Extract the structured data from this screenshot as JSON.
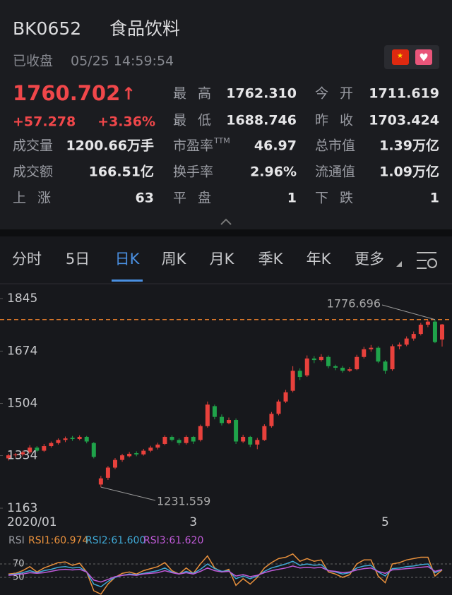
{
  "header": {
    "code": "BK0652",
    "name": "食品饮料",
    "status": "已收盘",
    "time": "05/25 14:59:54"
  },
  "quote": {
    "price": "1760.702",
    "change": "+57.278",
    "change_pct": "+3.36%",
    "left": [
      {
        "label": "成交量",
        "value": "1200.66万手"
      },
      {
        "label": "成交额",
        "value": "166.51亿"
      },
      {
        "label": "上 涨",
        "value": "63"
      }
    ],
    "middle": [
      {
        "label": "最 高",
        "value": "1762.310",
        "color": "#f0474a"
      },
      {
        "label": "最 低",
        "value": "1688.746",
        "color": "#25b35a"
      },
      {
        "label": "市盈率",
        "label_sup": "TTM",
        "value": "46.97"
      },
      {
        "label": "换手率",
        "value": "2.96%"
      },
      {
        "label": "平 盘",
        "value": "1"
      }
    ],
    "right": [
      {
        "label": "今 开",
        "value": "1711.619",
        "color": "#f0474a"
      },
      {
        "label": "昨 收",
        "value": "1703.424",
        "color": "#a9b4c8"
      },
      {
        "label": "总市值",
        "value": "1.39万亿"
      },
      {
        "label": "流通值",
        "value": "1.09万亿"
      },
      {
        "label": "下 跌",
        "value": "1"
      }
    ]
  },
  "tabs": {
    "items": [
      "分时",
      "5日",
      "日K",
      "周K",
      "月K",
      "季K",
      "年K",
      "更多"
    ],
    "selected": 2
  },
  "chart_data": {
    "type": "candlestick",
    "categories": [
      "2020/01",
      null,
      null,
      null,
      null,
      null,
      null,
      null,
      null,
      null,
      null,
      null,
      null,
      null,
      null,
      null,
      null,
      null,
      null,
      null,
      null,
      null,
      null,
      null,
      null,
      null,
      "3",
      null,
      null,
      null,
      null,
      null,
      null,
      null,
      null,
      null,
      null,
      null,
      null,
      null,
      null,
      null,
      null,
      null,
      null,
      null,
      null,
      null,
      null,
      null,
      null,
      null,
      null,
      "5",
      null,
      null,
      null,
      null,
      null,
      null,
      null,
      null
    ],
    "ohlc": [
      [
        1325,
        1340,
        1318,
        1335
      ],
      [
        1335,
        1342,
        1328,
        1338
      ],
      [
        1338,
        1350,
        1332,
        1345
      ],
      [
        1345,
        1368,
        1340,
        1360
      ],
      [
        1360,
        1365,
        1345,
        1350
      ],
      [
        1350,
        1372,
        1346,
        1365
      ],
      [
        1365,
        1380,
        1360,
        1375
      ],
      [
        1375,
        1390,
        1370,
        1385
      ],
      [
        1385,
        1396,
        1378,
        1390
      ],
      [
        1392,
        1398,
        1382,
        1388
      ],
      [
        1388,
        1400,
        1384,
        1395
      ],
      [
        1395,
        1398,
        1374,
        1380
      ],
      [
        1375,
        1378,
        1325,
        1330
      ],
      [
        1240,
        1268,
        1231.559,
        1260
      ],
      [
        1262,
        1300,
        1255,
        1295
      ],
      [
        1295,
        1326,
        1290,
        1320
      ],
      [
        1320,
        1340,
        1314,
        1335
      ],
      [
        1332,
        1346,
        1328,
        1340
      ],
      [
        1342,
        1348,
        1332,
        1338
      ],
      [
        1338,
        1356,
        1334,
        1350
      ],
      [
        1350,
        1366,
        1345,
        1360
      ],
      [
        1360,
        1376,
        1354,
        1370
      ],
      [
        1372,
        1400,
        1368,
        1395
      ],
      [
        1395,
        1400,
        1380,
        1385
      ],
      [
        1385,
        1390,
        1368,
        1375
      ],
      [
        1375,
        1400,
        1370,
        1395
      ],
      [
        1395,
        1398,
        1372,
        1380
      ],
      [
        1385,
        1435,
        1380,
        1430
      ],
      [
        1430,
        1510,
        1425,
        1500
      ],
      [
        1495,
        1500,
        1452,
        1460
      ],
      [
        1460,
        1468,
        1432,
        1440
      ],
      [
        1440,
        1458,
        1436,
        1450
      ],
      [
        1450,
        1455,
        1372,
        1380
      ],
      [
        1380,
        1402,
        1375,
        1395
      ],
      [
        1395,
        1398,
        1362,
        1370
      ],
      [
        1370,
        1392,
        1355,
        1385
      ],
      [
        1385,
        1436,
        1382,
        1430
      ],
      [
        1430,
        1476,
        1425,
        1470
      ],
      [
        1470,
        1516,
        1465,
        1510
      ],
      [
        1510,
        1548,
        1505,
        1540
      ],
      [
        1545,
        1625,
        1540,
        1610
      ],
      [
        1610,
        1618,
        1580,
        1590
      ],
      [
        1595,
        1660,
        1590,
        1650
      ],
      [
        1650,
        1658,
        1635,
        1645
      ],
      [
        1645,
        1664,
        1640,
        1655
      ],
      [
        1655,
        1660,
        1618,
        1625
      ],
      [
        1625,
        1630,
        1612,
        1620
      ],
      [
        1620,
        1626,
        1604,
        1610
      ],
      [
        1610,
        1622,
        1606,
        1615
      ],
      [
        1615,
        1662,
        1612,
        1655
      ],
      [
        1655,
        1688,
        1650,
        1680
      ],
      [
        1680,
        1694,
        1672,
        1685
      ],
      [
        1685,
        1690,
        1635,
        1640
      ],
      [
        1640,
        1645,
        1600,
        1610
      ],
      [
        1615,
        1696,
        1610,
        1690
      ],
      [
        1690,
        1702,
        1680,
        1695
      ],
      [
        1695,
        1722,
        1690,
        1715
      ],
      [
        1715,
        1738,
        1708,
        1730
      ],
      [
        1730,
        1766,
        1725,
        1760
      ],
      [
        1760,
        1775,
        1752,
        1770
      ],
      [
        1770,
        1776.696,
        1700,
        1703.424
      ],
      [
        1711.619,
        1762.31,
        1688.746,
        1760.702
      ]
    ],
    "up_color": "#e8413c",
    "down_color": "#1fa34a",
    "ylim": [
      1163,
      1845
    ],
    "yticks": [
      1845,
      1674,
      1504,
      1334,
      1163
    ],
    "max_label": 1776.696,
    "min_label": 1231.559,
    "rsi": {
      "title": "RSI",
      "ylim": [
        30,
        90
      ],
      "yticks": [
        70,
        50
      ],
      "series": [
        {
          "name": "RSI1:60.974",
          "color": "#e8903c",
          "values": [
            55,
            56,
            60,
            66,
            58,
            64,
            68,
            72,
            73,
            68,
            71,
            58,
            30,
            25,
            40,
            50,
            56,
            58,
            55,
            60,
            63,
            66,
            72,
            60,
            55,
            64,
            56,
            70,
            82,
            64,
            58,
            62,
            38,
            48,
            40,
            50,
            64,
            72,
            78,
            80,
            85,
            74,
            78,
            74,
            76,
            58,
            55,
            50,
            54,
            70,
            76,
            76,
            52,
            42,
            70,
            72,
            76,
            78,
            80,
            80,
            52,
            60.974
          ]
        },
        {
          "name": "RSI2:61.600",
          "color": "#3fa9d6",
          "values": [
            54,
            55,
            57,
            60,
            57,
            60,
            62,
            65,
            66,
            64,
            65,
            58,
            40,
            36,
            44,
            50,
            53,
            55,
            54,
            56,
            58,
            60,
            64,
            58,
            55,
            59,
            56,
            62,
            70,
            63,
            59,
            60,
            48,
            52,
            48,
            52,
            59,
            64,
            67,
            70,
            74,
            68,
            70,
            68,
            69,
            60,
            58,
            55,
            57,
            64,
            67,
            68,
            58,
            52,
            63,
            64,
            66,
            67,
            69,
            70,
            57,
            61.6
          ]
        },
        {
          "name": "RSI3:61.620",
          "color": "#c05ad8",
          "values": [
            53,
            54,
            55,
            57,
            56,
            57,
            59,
            61,
            62,
            61,
            62,
            58,
            46,
            43,
            47,
            51,
            53,
            54,
            53,
            55,
            56,
            57,
            60,
            57,
            55,
            57,
            55,
            59,
            64,
            60,
            58,
            59,
            52,
            54,
            51,
            53,
            57,
            60,
            62,
            64,
            67,
            64,
            65,
            64,
            65,
            60,
            59,
            57,
            58,
            61,
            63,
            64,
            59,
            56,
            61,
            62,
            63,
            64,
            65,
            66,
            59,
            61.62
          ]
        }
      ]
    }
  }
}
